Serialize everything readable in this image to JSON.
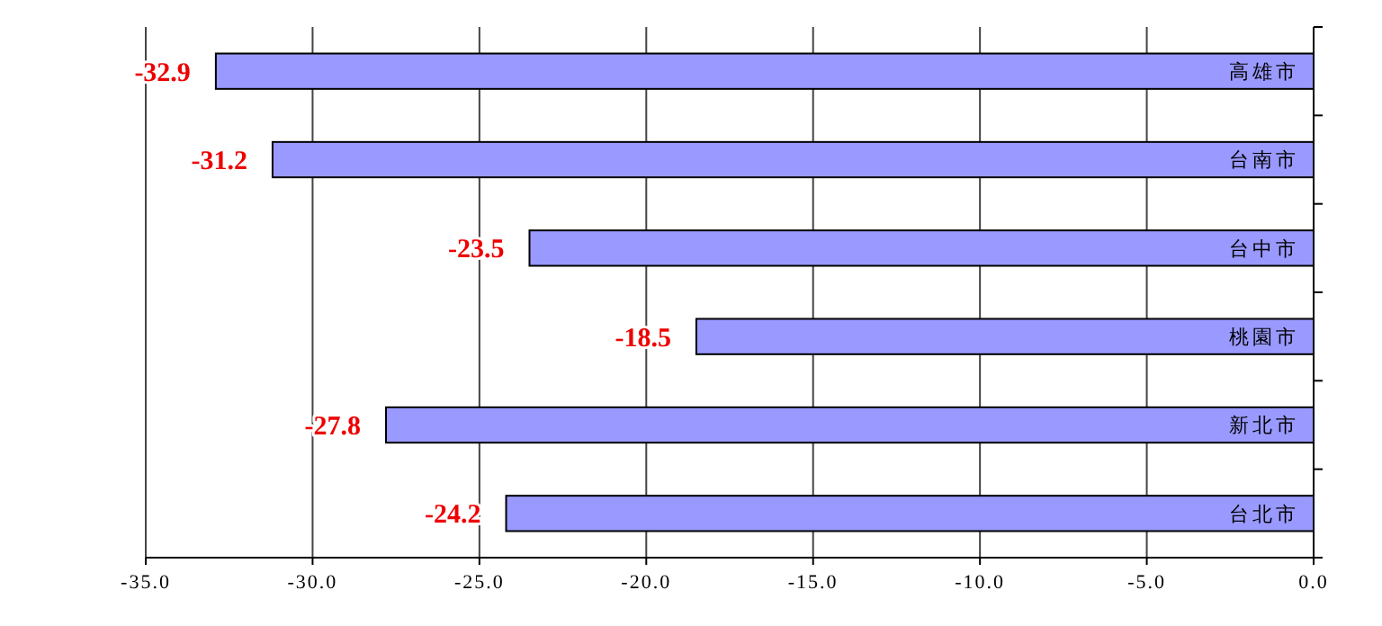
{
  "chart_data": {
    "type": "bar",
    "orientation": "horizontal",
    "categories": [
      "高雄市",
      "台南市",
      "台中市",
      "桃園市",
      "新北市",
      "台北市"
    ],
    "values": [
      -32.9,
      -31.2,
      -23.5,
      -18.5,
      -27.8,
      -24.2
    ],
    "color": "#9999ff",
    "data_labels": true,
    "xlim": [
      -35,
      0
    ],
    "xticks": [
      {
        "value": -35,
        "label": "-35.0"
      },
      {
        "value": -30,
        "label": "-30.0"
      },
      {
        "value": -25,
        "label": "-25.0"
      },
      {
        "value": -20,
        "label": "-20.0"
      },
      {
        "value": -15,
        "label": "-15.0"
      },
      {
        "value": -10,
        "label": "-10.0"
      },
      {
        "value": -5,
        "label": "-5.0"
      },
      {
        "value": 0,
        "label": "0.0"
      }
    ],
    "grid": "x"
  }
}
